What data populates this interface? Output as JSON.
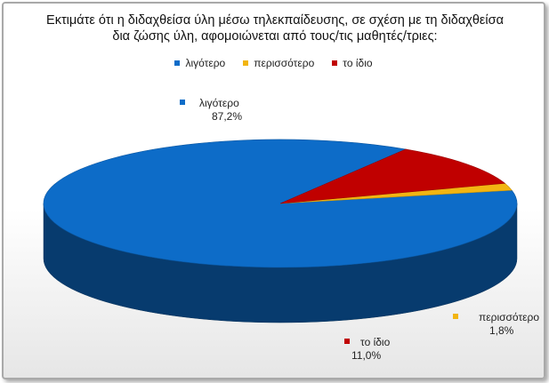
{
  "chart_data": {
    "type": "pie",
    "title_line1": "Εκτιμάτε ότι η διδαχθείσα ύλη μέσω τηλεκπαίδευσης, σε σχέση με τη διδαχθείσα",
    "title_line2": "δια ζώσης ύλη, αφομοιώνεται από τους/τις μαθητές/τριες:",
    "legend_placement": "top",
    "categories": [
      "λιγότερο",
      "περισσότερο",
      "το ίδιο"
    ],
    "values": [
      87.2,
      1.8,
      11.0
    ],
    "data_labels": [
      "87,2%",
      "1,8%",
      "11,0%"
    ],
    "colors": [
      "#0d6cc8",
      "#f2b512",
      "#c00000"
    ]
  }
}
